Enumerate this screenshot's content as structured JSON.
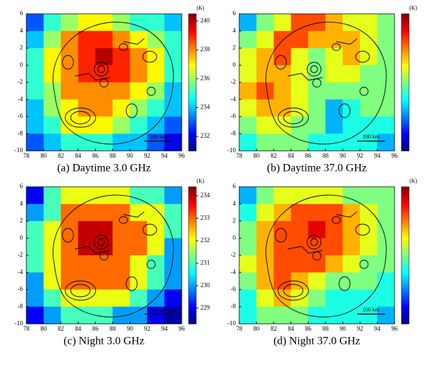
{
  "chart_data": [
    {
      "type": "heatmap",
      "caption": "(a) Daytime 3.0 GHz",
      "unit": "(K)",
      "scale_label": "100 km",
      "xlim": [
        78,
        96
      ],
      "ylim": [
        -10,
        6
      ],
      "xticks": [
        78,
        80,
        82,
        84,
        86,
        88,
        90,
        92,
        94,
        96
      ],
      "yticks": [
        -10,
        -8,
        -6,
        -4,
        -2,
        0,
        2,
        4,
        6
      ],
      "x": [
        79,
        81,
        83,
        85,
        87,
        89,
        91,
        93,
        95
      ],
      "y": [
        5,
        3,
        1,
        -1,
        -3,
        -5,
        -7,
        -9
      ],
      "clim": [
        231,
        240.5
      ],
      "cticks": [
        232,
        234,
        236,
        238,
        240
      ],
      "values": [
        [
          233,
          235,
          236,
          237,
          237,
          236,
          235,
          235,
          234
        ],
        [
          234,
          236,
          238,
          239,
          239,
          238,
          237,
          236,
          235
        ],
        [
          235,
          237,
          238,
          239,
          240,
          239,
          238,
          237,
          235
        ],
        [
          235,
          237,
          238,
          239,
          239,
          239,
          238,
          237,
          235
        ],
        [
          235,
          236,
          238,
          238,
          238,
          238,
          237,
          236,
          234
        ],
        [
          234,
          236,
          237,
          238,
          238,
          237,
          236,
          235,
          234
        ],
        [
          234,
          235,
          237,
          237,
          237,
          236,
          235,
          234,
          233
        ],
        [
          233,
          234,
          235,
          235,
          235,
          234,
          234,
          233,
          232
        ]
      ]
    },
    {
      "type": "heatmap",
      "caption": "(b) Daytime 37.0 GHz",
      "unit": "(K)",
      "scale_label": "100 km",
      "xlim": [
        78,
        96
      ],
      "ylim": [
        -10,
        6
      ],
      "xticks": [
        78,
        80,
        82,
        84,
        86,
        88,
        90,
        92,
        94,
        96
      ],
      "yticks": [
        -10,
        -8,
        -6,
        -4,
        -2,
        0,
        2,
        4,
        6
      ],
      "x": [
        79,
        81,
        83,
        85,
        87,
        89,
        91,
        93,
        95
      ],
      "y": [
        5,
        3,
        1,
        -1,
        -3,
        -5,
        -7,
        -9
      ],
      "clim": [
        0,
        1
      ],
      "values": [
        [
          0.3,
          0.5,
          0.6,
          0.8,
          0.8,
          0.7,
          0.6,
          0.6,
          0.5
        ],
        [
          0.5,
          0.6,
          0.8,
          0.8,
          0.7,
          0.7,
          0.7,
          0.6,
          0.5
        ],
        [
          0.6,
          0.7,
          0.8,
          0.6,
          0.5,
          0.6,
          0.7,
          0.6,
          0.5
        ],
        [
          0.6,
          0.7,
          0.7,
          0.6,
          0.5,
          0.6,
          0.6,
          0.5,
          0.5
        ],
        [
          0.7,
          0.8,
          0.7,
          0.6,
          0.5,
          0.5,
          0.5,
          0.5,
          0.5
        ],
        [
          0.6,
          0.7,
          0.7,
          0.6,
          0.5,
          0.3,
          0.4,
          0.5,
          0.5
        ],
        [
          0.5,
          0.6,
          0.6,
          0.5,
          0.5,
          0.3,
          0.4,
          0.4,
          0.4
        ],
        [
          0.4,
          0.5,
          0.5,
          0.5,
          0.4,
          0.4,
          0.4,
          0.4,
          0.3
        ]
      ]
    },
    {
      "type": "heatmap",
      "caption": "(c) Night 3.0 GHz",
      "unit": "(K)",
      "scale_label": "100 km",
      "xlim": [
        78,
        96
      ],
      "ylim": [
        -10,
        6
      ],
      "xticks": [
        78,
        80,
        82,
        84,
        86,
        88,
        90,
        92,
        94,
        96
      ],
      "yticks": [
        -10,
        -8,
        -6,
        -4,
        -2,
        0,
        2,
        4,
        6
      ],
      "x": [
        79,
        81,
        83,
        85,
        87,
        89,
        91,
        93,
        95
      ],
      "y": [
        5,
        3,
        1,
        -1,
        -3,
        -5,
        -7,
        -9
      ],
      "clim": [
        228.3,
        234.4
      ],
      "cticks": [
        229,
        230,
        231,
        232,
        233,
        234
      ],
      "values": [
        [
          229,
          231,
          232,
          232,
          232,
          232,
          231,
          231,
          230
        ],
        [
          230,
          231,
          233,
          233,
          233,
          233,
          232,
          232,
          231
        ],
        [
          231,
          232,
          233,
          234,
          234,
          233,
          233,
          232,
          231
        ],
        [
          231,
          232,
          233,
          234,
          234,
          233,
          233,
          232,
          230
        ],
        [
          231,
          232,
          233,
          233,
          233,
          233,
          232,
          231,
          230
        ],
        [
          230,
          232,
          233,
          233,
          233,
          233,
          232,
          231,
          230
        ],
        [
          230,
          231,
          232,
          232,
          232,
          232,
          231,
          230,
          229
        ],
        [
          229,
          230,
          231,
          231,
          231,
          230,
          230,
          229,
          228.5
        ]
      ]
    },
    {
      "type": "heatmap",
      "caption": "(d) Night 37.0 GHz",
      "unit": "(K)",
      "scale_label": "100 km",
      "xlim": [
        78,
        96
      ],
      "ylim": [
        -10,
        6
      ],
      "xticks": [
        78,
        80,
        82,
        84,
        86,
        88,
        90,
        92,
        94,
        96
      ],
      "yticks": [
        -10,
        -8,
        -6,
        -4,
        -2,
        0,
        2,
        4,
        6
      ],
      "x": [
        79,
        81,
        83,
        85,
        87,
        89,
        91,
        93,
        95
      ],
      "y": [
        5,
        3,
        1,
        -1,
        -3,
        -5,
        -7,
        -9
      ],
      "clim": [
        0,
        1
      ],
      "values": [
        [
          0.3,
          0.5,
          0.6,
          0.6,
          0.6,
          0.6,
          0.5,
          0.5,
          0.5
        ],
        [
          0.4,
          0.6,
          0.7,
          0.8,
          0.8,
          0.8,
          0.7,
          0.6,
          0.5
        ],
        [
          0.5,
          0.7,
          0.8,
          0.8,
          0.9,
          0.8,
          0.7,
          0.6,
          0.5
        ],
        [
          0.5,
          0.7,
          0.8,
          0.8,
          0.8,
          0.8,
          0.7,
          0.6,
          0.5
        ],
        [
          0.6,
          0.7,
          0.8,
          0.8,
          0.8,
          0.7,
          0.6,
          0.5,
          0.5
        ],
        [
          0.5,
          0.7,
          0.8,
          0.7,
          0.6,
          0.5,
          0.5,
          0.5,
          0.4
        ],
        [
          0.4,
          0.6,
          0.7,
          0.6,
          0.5,
          0.4,
          0.4,
          0.4,
          0.4
        ],
        [
          0.4,
          0.5,
          0.5,
          0.5,
          0.4,
          0.4,
          0.4,
          0.4,
          0.3
        ]
      ]
    }
  ]
}
